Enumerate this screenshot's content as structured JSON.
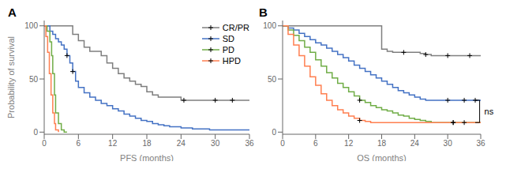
{
  "chart_data": [
    {
      "type": "step",
      "title": "A",
      "xlabel": "PFS (months)",
      "ylabel": "Probability of survival",
      "xlim": [
        0,
        36
      ],
      "ylim": [
        -2,
        105
      ],
      "xticks": [
        0,
        6,
        12,
        18,
        24,
        30,
        36
      ],
      "yticks": [
        0,
        50,
        100
      ],
      "legend": "upper right",
      "series": [
        {
          "name": "CR/PR",
          "color": "#7f7f7f",
          "x": [
            0,
            5,
            5,
            6,
            7,
            8,
            9,
            10,
            11,
            12,
            13,
            14,
            15,
            16,
            17,
            18,
            19,
            20,
            21,
            22,
            23,
            24,
            25,
            26,
            27,
            28,
            29,
            30,
            31,
            32,
            33,
            34,
            35,
            36
          ],
          "values": [
            100,
            100,
            92,
            86,
            80,
            76,
            76,
            72,
            65,
            60,
            55,
            51,
            48,
            45,
            43,
            38,
            35,
            33,
            33,
            33,
            33,
            30,
            30,
            30,
            30,
            30,
            30,
            30,
            30,
            30,
            30,
            30,
            30,
            30
          ],
          "censors": [
            {
              "x": 24.5,
              "y": 30
            },
            {
              "x": 30,
              "y": 30
            },
            {
              "x": 33,
              "y": 30
            }
          ]
        },
        {
          "name": "SD",
          "color": "#4472C4",
          "x": [
            0,
            1,
            1.5,
            2,
            2.5,
            3,
            3.5,
            4,
            4.5,
            5,
            5.5,
            6,
            7,
            8,
            9,
            10,
            11,
            12,
            13,
            14,
            15,
            16,
            17,
            18,
            19,
            20,
            21,
            22,
            23,
            24,
            25,
            26,
            27,
            28,
            29,
            30,
            31,
            32,
            33,
            34,
            35,
            36
          ],
          "values": [
            100,
            95,
            92,
            88,
            85,
            82,
            78,
            72,
            65,
            57,
            48,
            42,
            37,
            33,
            30,
            27,
            25,
            22,
            20,
            17,
            15,
            13,
            11,
            10,
            8,
            7,
            6,
            5,
            5,
            4,
            4,
            3,
            3,
            3,
            2,
            2,
            2,
            2,
            2,
            2,
            2,
            2
          ],
          "censors": [
            {
              "x": 4,
              "y": 72
            },
            {
              "x": 5,
              "y": 57
            }
          ]
        },
        {
          "name": "PD",
          "color": "#70AD47",
          "x": [
            0,
            0.5,
            1,
            1.3,
            1.5,
            1.8,
            2,
            2.5,
            3,
            3.5,
            4
          ],
          "values": [
            100,
            95,
            85,
            72,
            55,
            35,
            18,
            8,
            2,
            0,
            0
          ],
          "censors": []
        },
        {
          "name": "HPD",
          "color": "#FF7F50",
          "x": [
            0,
            0.3,
            0.6,
            0.9,
            1.2,
            1.5,
            1.8,
            2.0,
            2.5
          ],
          "values": [
            100,
            90,
            75,
            55,
            35,
            18,
            8,
            2,
            0
          ],
          "censors": []
        }
      ]
    },
    {
      "type": "step",
      "title": "B",
      "xlabel": "OS (months)",
      "xlim": [
        0,
        36
      ],
      "ylim": [
        -2,
        105
      ],
      "xticks": [
        0,
        6,
        12,
        18,
        24,
        30,
        36
      ],
      "yticks": [
        0,
        50,
        100
      ],
      "series": [
        {
          "name": "CR/PR",
          "color": "#7f7f7f",
          "x": [
            0,
            18,
            18,
            19,
            20,
            21,
            22,
            23,
            24,
            25,
            26,
            27,
            28,
            29,
            30,
            31,
            32,
            33,
            34,
            35,
            36
          ],
          "values": [
            100,
            100,
            78,
            76,
            75,
            75,
            75,
            75,
            75,
            74,
            73,
            72,
            72,
            72,
            72,
            72,
            72,
            72,
            72,
            72,
            72
          ],
          "censors": [
            {
              "x": 22,
              "y": 75
            },
            {
              "x": 26,
              "y": 73
            },
            {
              "x": 30,
              "y": 72
            },
            {
              "x": 34,
              "y": 72
            }
          ]
        },
        {
          "name": "SD",
          "color": "#4472C4",
          "x": [
            0,
            1,
            2,
            3,
            4,
            5,
            6,
            7,
            8,
            9,
            10,
            11,
            12,
            13,
            14,
            15,
            16,
            17,
            18,
            19,
            20,
            21,
            22,
            23,
            24,
            25,
            26,
            27,
            28,
            29,
            30,
            31,
            32,
            33,
            34,
            35,
            36
          ],
          "values": [
            100,
            98,
            96,
            93,
            90,
            87,
            84,
            82,
            79,
            76,
            73,
            70,
            67,
            63,
            60,
            57,
            54,
            51,
            48,
            45,
            42,
            39,
            37,
            35,
            33,
            31,
            30,
            30,
            30,
            30,
            30,
            30,
            30,
            30,
            30,
            30,
            30
          ],
          "censors": [
            {
              "x": 30,
              "y": 30
            },
            {
              "x": 33,
              "y": 30
            },
            {
              "x": 35,
              "y": 30
            }
          ]
        },
        {
          "name": "PD",
          "color": "#70AD47",
          "x": [
            0,
            1,
            2,
            3,
            4,
            5,
            6,
            7,
            8,
            9,
            10,
            11,
            12,
            13,
            14,
            15,
            16,
            17,
            18,
            19,
            20,
            21,
            22,
            23,
            24,
            25,
            26,
            27,
            28,
            29,
            30,
            31,
            32,
            33,
            34,
            35,
            36
          ],
          "values": [
            100,
            96,
            91,
            86,
            80,
            75,
            68,
            62,
            56,
            51,
            46,
            42,
            38,
            34,
            30,
            28,
            25,
            23,
            21,
            20,
            18,
            16,
            15,
            13,
            12,
            11,
            10,
            9,
            9,
            9,
            9,
            9,
            9,
            9,
            9,
            9,
            9
          ],
          "censors": [
            {
              "x": 14,
              "y": 30
            },
            {
              "x": 31,
              "y": 9
            }
          ]
        },
        {
          "name": "HPD",
          "color": "#FF7F50",
          "x": [
            0,
            1,
            2,
            3,
            4,
            5,
            6,
            7,
            8,
            9,
            10,
            11,
            12,
            13,
            14,
            15,
            16,
            17,
            18,
            19,
            20,
            21,
            22,
            23,
            24,
            25,
            26,
            27,
            28,
            29,
            30,
            31,
            32,
            33,
            34,
            35,
            36
          ],
          "values": [
            100,
            92,
            82,
            72,
            62,
            52,
            44,
            36,
            30,
            25,
            21,
            18,
            15,
            13,
            11,
            10,
            9,
            9,
            9,
            9,
            9,
            9,
            9,
            9,
            9,
            9,
            9,
            9,
            9,
            9,
            9,
            9,
            9,
            9,
            9,
            9,
            9
          ],
          "censors": [
            {
              "x": 14,
              "y": 11
            },
            {
              "x": 31,
              "y": 9
            },
            {
              "x": 33,
              "y": 9
            }
          ]
        }
      ],
      "annotations": [
        {
          "text": "ns",
          "x": 35.8,
          "y": [
            9,
            30
          ]
        }
      ]
    }
  ]
}
